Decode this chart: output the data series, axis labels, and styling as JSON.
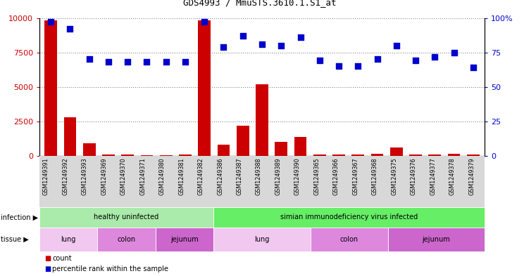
{
  "title": "GDS4993 / MmuSTS.3610.1.S1_at",
  "samples": [
    "GSM1249391",
    "GSM1249392",
    "GSM1249393",
    "GSM1249369",
    "GSM1249370",
    "GSM1249371",
    "GSM1249380",
    "GSM1249381",
    "GSM1249382",
    "GSM1249386",
    "GSM1249387",
    "GSM1249388",
    "GSM1249389",
    "GSM1249390",
    "GSM1249365",
    "GSM1249366",
    "GSM1249367",
    "GSM1249368",
    "GSM1249375",
    "GSM1249376",
    "GSM1249377",
    "GSM1249378",
    "GSM1249379"
  ],
  "counts": [
    9800,
    2800,
    900,
    80,
    80,
    60,
    70,
    80,
    9800,
    800,
    2200,
    5200,
    1000,
    1400,
    100,
    80,
    80,
    150,
    600,
    80,
    100,
    150,
    80
  ],
  "percentiles": [
    97,
    92,
    70,
    68,
    68,
    68,
    68,
    68,
    97,
    79,
    87,
    81,
    80,
    86,
    69,
    65,
    65,
    70,
    80,
    69,
    72,
    75,
    64
  ],
  "bar_color": "#cc0000",
  "dot_color": "#0000cc",
  "ylim_left": [
    0,
    10000
  ],
  "ylim_right": [
    0,
    100
  ],
  "yticks_left": [
    0,
    2500,
    5000,
    7500,
    10000
  ],
  "yticks_right": [
    0,
    25,
    50,
    75,
    100
  ],
  "infection_groups": [
    {
      "label": "healthy uninfected",
      "start": 0,
      "end": 9,
      "color": "#aaeaaa"
    },
    {
      "label": "simian immunodeficiency virus infected",
      "start": 9,
      "end": 23,
      "color": "#66ee66"
    }
  ],
  "tissue_groups": [
    {
      "label": "lung",
      "start": 0,
      "end": 3,
      "color": "#f0c8f0"
    },
    {
      "label": "colon",
      "start": 3,
      "end": 6,
      "color": "#dd88dd"
    },
    {
      "label": "jejunum",
      "start": 6,
      "end": 9,
      "color": "#cc66cc"
    },
    {
      "label": "lung",
      "start": 9,
      "end": 14,
      "color": "#f0c8f0"
    },
    {
      "label": "colon",
      "start": 14,
      "end": 18,
      "color": "#dd88dd"
    },
    {
      "label": "jejunum",
      "start": 18,
      "end": 23,
      "color": "#cc66cc"
    }
  ],
  "xtick_bg_color": "#d8d8d8",
  "infection_label": "infection",
  "tissue_label": "tissue",
  "legend_count_label": "count",
  "legend_pct_label": "percentile rank within the sample"
}
